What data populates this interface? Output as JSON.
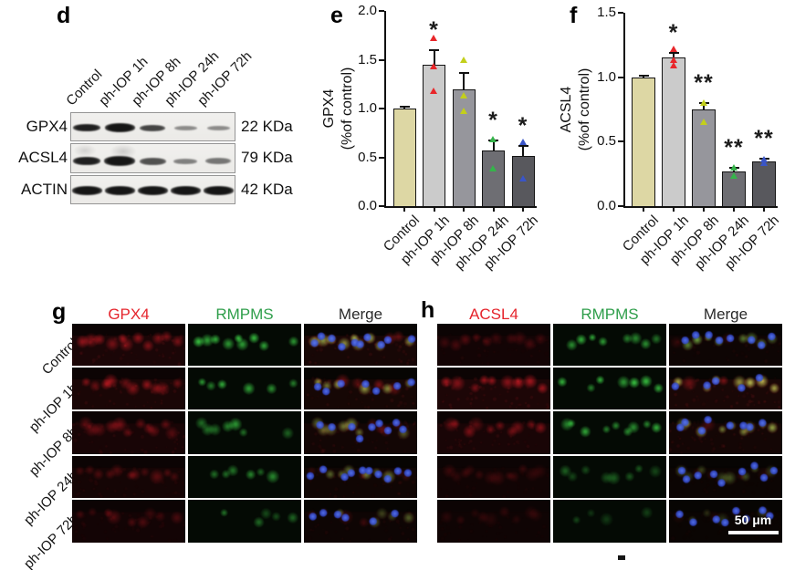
{
  "figure": {
    "panel_d": {
      "label": "d",
      "lane_labels": [
        "Control",
        "ph-IOP 1h",
        "ph-IOP 8h",
        "ph-IOP 24h",
        "ph-IOP 72h"
      ],
      "blot_rows": [
        {
          "protein": "GPX4",
          "mw": "22 KDa",
          "band_intensities": [
            0.95,
            1.0,
            0.78,
            0.45,
            0.45
          ]
        },
        {
          "protein": "ACSL4",
          "mw": "79 KDa",
          "band_intensities": [
            0.95,
            1.0,
            0.72,
            0.5,
            0.55
          ]
        },
        {
          "protein": "ACTIN",
          "mw": "42 KDa",
          "band_intensities": [
            1.0,
            1.0,
            1.0,
            1.0,
            1.0
          ]
        }
      ]
    },
    "panel_e": {
      "label": "e"
    },
    "panel_f": {
      "label": "f"
    },
    "panel_g": {
      "label": "g",
      "col_headers": [
        {
          "text": "GPX4",
          "color": "#e5242c"
        },
        {
          "text": "RMPMS",
          "color": "#2e9e4a"
        },
        {
          "text": "Merge",
          "color": "#2a2a2a"
        }
      ],
      "row_labels": [
        "Control",
        "ph-IOP 1h",
        "ph-IOP 8h",
        "ph-IOP 24h",
        "ph-IOP 72h"
      ]
    },
    "panel_h": {
      "label": "h",
      "col_headers": [
        {
          "text": "ACSL4",
          "color": "#e5242c"
        },
        {
          "text": "RMPMS",
          "color": "#2e9e4a"
        },
        {
          "text": "Merge",
          "color": "#2a2a2a"
        }
      ],
      "scale_bar_label": "50 μm"
    }
  },
  "chart_data": [
    {
      "type": "bar",
      "panel": "e",
      "title": "",
      "xlabel": "",
      "ylabel": "GPX4 (%of control)",
      "ylabel_lines": [
        "GPX4",
        "(%of control)"
      ],
      "categories": [
        "Control",
        "ph-IOP 1h",
        "ph-IOP 8h",
        "ph-IOP 24h",
        "ph-IOP 72h"
      ],
      "values": [
        1.0,
        1.45,
        1.2,
        0.57,
        0.51
      ],
      "errors": [
        0.02,
        0.15,
        0.16,
        0.1,
        0.11
      ],
      "points": [
        [],
        [
          1.72,
          1.43,
          1.18
        ],
        [
          1.5,
          1.13,
          0.97
        ],
        [
          0.68,
          0.38
        ],
        [
          0.65,
          0.28
        ]
      ],
      "significance": [
        "",
        "*",
        "",
        "*",
        "*"
      ],
      "ylim": [
        0,
        2.0
      ],
      "yticks": [
        0.0,
        0.5,
        1.0,
        1.5,
        2.0
      ],
      "bar_colors": [
        "#ddd7a4",
        "#cbcbcb",
        "#96969c",
        "#6e6e73",
        "#58585d"
      ],
      "point_colors": [
        "#e8262a",
        "#e8262a",
        "#c3cf1b",
        "#35b44a",
        "#3a55c8"
      ]
    },
    {
      "type": "bar",
      "panel": "f",
      "title": "",
      "xlabel": "",
      "ylabel": "ACSL4 (%of control)",
      "ylabel_lines": [
        "ACSL4",
        "(%of control)"
      ],
      "categories": [
        "Control",
        "ph-IOP 1h",
        "ph-IOP 8h",
        "ph-IOP 24h",
        "ph-IOP 72h"
      ],
      "values": [
        1.0,
        1.15,
        0.75,
        0.27,
        0.35
      ],
      "errors": [
        0.01,
        0.04,
        0.05,
        0.03,
        0.02
      ],
      "points": [
        [],
        [
          1.22,
          1.13,
          1.09
        ],
        [
          0.8,
          0.65
        ],
        [
          0.3,
          0.23
        ],
        [
          0.36,
          0.33
        ]
      ],
      "significance": [
        "",
        "*",
        "**",
        "**",
        "**"
      ],
      "ylim": [
        0,
        1.5
      ],
      "yticks": [
        0.0,
        0.5,
        1.0,
        1.5
      ],
      "bar_colors": [
        "#ddd7a4",
        "#cbcbcb",
        "#96969c",
        "#6e6e73",
        "#58585d"
      ],
      "point_colors": [
        "#e8262a",
        "#e8262a",
        "#c3cf1b",
        "#35b44a",
        "#3a55c8"
      ]
    }
  ]
}
